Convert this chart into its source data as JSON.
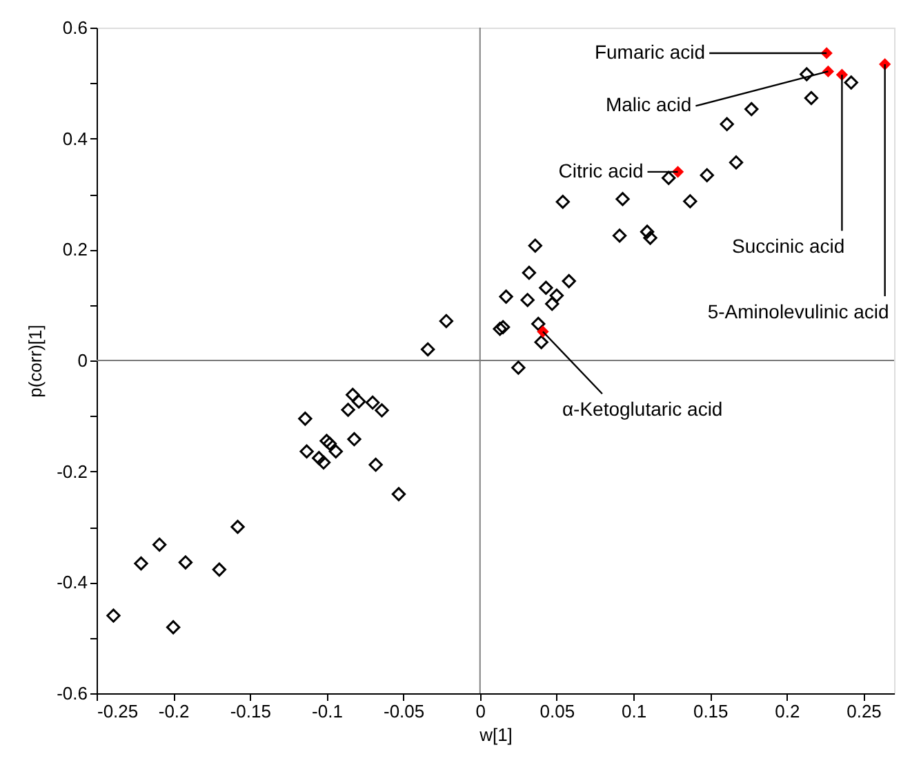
{
  "chart_data": {
    "type": "scatter",
    "xlabel": "w[1]",
    "ylabel": "p(corr)[1]",
    "xlim": [
      -0.25,
      0.27
    ],
    "ylim": [
      -0.6,
      0.6
    ],
    "xticks": [
      -0.25,
      -0.2,
      -0.15,
      -0.1,
      -0.05,
      0,
      0.05,
      0.1,
      0.15,
      0.2,
      0.25
    ],
    "yticks": [
      -0.6,
      {
        "value": -0.5,
        "label": null
      },
      -0.4,
      {
        "value": -0.3,
        "label": null
      },
      -0.2,
      {
        "value": -0.1,
        "label": null
      },
      0,
      {
        "value": 0.1,
        "label": null
      },
      0.2,
      {
        "value": 0.3,
        "label": null
      },
      0.4,
      {
        "value": 0.5,
        "label": null
      },
      0.6
    ],
    "grid": false,
    "marker": "diamond",
    "ref_lines": [
      {
        "axis": "x",
        "value": 0,
        "color": "#808080"
      },
      {
        "axis": "y",
        "value": 0,
        "color": "#7a7a7a"
      }
    ],
    "series": [
      {
        "color": "#000000",
        "x": [
          -0.239,
          -0.221,
          -0.209,
          -0.2,
          -0.192,
          -0.17,
          -0.158,
          -0.114,
          -0.113,
          -0.105,
          -0.102,
          -0.1,
          -0.098,
          -0.094,
          -0.086,
          -0.083,
          -0.079,
          -0.082,
          -0.07,
          -0.064,
          -0.068,
          -0.053,
          -0.034,
          -0.022,
          0.025,
          0.013,
          0.015,
          0.017,
          0.031,
          0.032,
          0.036,
          0.038,
          0.04,
          0.043,
          0.047,
          0.05,
          0.058,
          0.054,
          0.091,
          0.093,
          0.109,
          0.111,
          0.213,
          0.242,
          0.216,
          0.177,
          0.161,
          0.167,
          0.148,
          0.123,
          0.137
        ],
        "values": [
          -0.46,
          -0.366,
          -0.332,
          -0.481,
          -0.364,
          -0.377,
          -0.3,
          -0.105,
          -0.164,
          -0.176,
          -0.184,
          -0.145,
          -0.15,
          -0.164,
          -0.089,
          -0.062,
          -0.074,
          -0.142,
          -0.076,
          -0.09,
          -0.188,
          -0.241,
          0.02,
          0.071,
          -0.013,
          0.057,
          0.06,
          0.115,
          0.109,
          0.158,
          0.207,
          0.066,
          0.033,
          0.131,
          0.102,
          0.117,
          0.143,
          0.286,
          0.225,
          0.291,
          0.232,
          0.221,
          0.516,
          0.501,
          0.473,
          0.453,
          0.426,
          0.357,
          0.334,
          0.329,
          0.287
        ]
      },
      {
        "color": "#ff0000",
        "x": [
          0.226,
          0.227,
          0.129,
          0.236,
          0.264,
          0.041
        ],
        "values": [
          0.554,
          0.521,
          0.34,
          0.515,
          0.534,
          0.052
        ]
      }
    ],
    "annotations": [
      {
        "text": "Fumaric acid",
        "x": 0.226,
        "y": 0.554
      },
      {
        "text": "Malic acid",
        "x": 0.227,
        "y": 0.521
      },
      {
        "text": "Citric acid",
        "x": 0.129,
        "y": 0.34
      },
      {
        "text": "Succinic acid",
        "x": 0.236,
        "y": 0.515
      },
      {
        "text": "5-Aminolevulinic acid",
        "x": 0.264,
        "y": 0.534
      },
      {
        "text": "α-Ketoglutaric acid",
        "x": 0.041,
        "y": 0.052
      }
    ]
  }
}
